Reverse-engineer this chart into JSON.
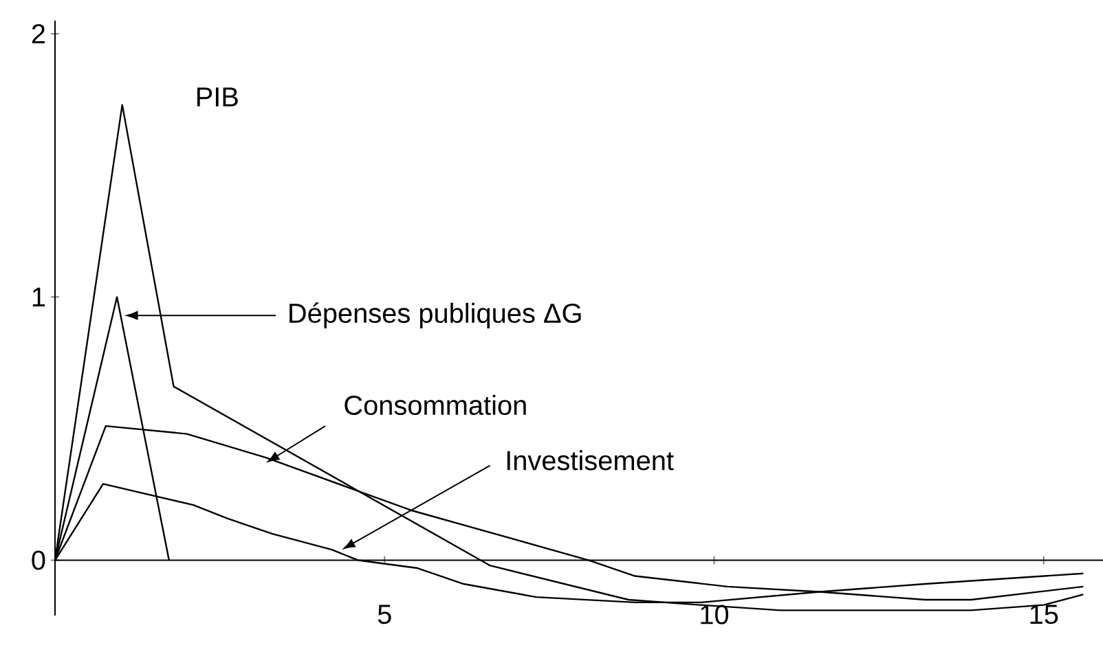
{
  "chart_data": {
    "type": "line",
    "xlim": [
      0,
      15.9
    ],
    "ylim": [
      -0.21,
      2.05
    ],
    "xticks": [
      5,
      10,
      15
    ],
    "yticks": [
      0,
      1,
      2
    ],
    "grid": false,
    "legend": false,
    "marker": "none",
    "line_style": "solid",
    "series": [
      {
        "name": "PIB",
        "color": "#000000",
        "x": [
          0,
          1.02,
          1.8,
          6.6,
          8.7,
          9.8,
          11,
          13.9,
          15,
          15.6
        ],
        "values": [
          0,
          1.73,
          0.66,
          -0.02,
          -0.15,
          -0.17,
          -0.19,
          -0.19,
          -0.17,
          -0.13
        ]
      },
      {
        "name": "Dépenses publiques ΔG",
        "color": "#000000",
        "x": [
          0,
          0.94,
          1.73
        ],
        "values": [
          0,
          1.0,
          0
        ]
      },
      {
        "name": "Consommation",
        "color": "#000000",
        "x": [
          0,
          0.77,
          2.0,
          3.2,
          5.4,
          8.1,
          8.8,
          10.2,
          11.6,
          13.2,
          13.9,
          15.6
        ],
        "values": [
          0,
          0.51,
          0.48,
          0.39,
          0.19,
          0,
          -0.06,
          -0.1,
          -0.12,
          -0.15,
          -0.15,
          -0.1
        ]
      },
      {
        "name": "Investisement",
        "color": "#000000",
        "x": [
          0,
          0.73,
          2.1,
          2.6,
          3.3,
          4.2,
          4.6,
          5.5,
          6.2,
          7.3,
          8.8,
          9.8,
          11.6,
          13.2,
          15.6
        ],
        "values": [
          0,
          0.29,
          0.21,
          0.16,
          0.1,
          0.04,
          0,
          -0.03,
          -0.09,
          -0.14,
          -0.16,
          -0.16,
          -0.12,
          -0.09,
          -0.05
        ]
      }
    ]
  }
}
